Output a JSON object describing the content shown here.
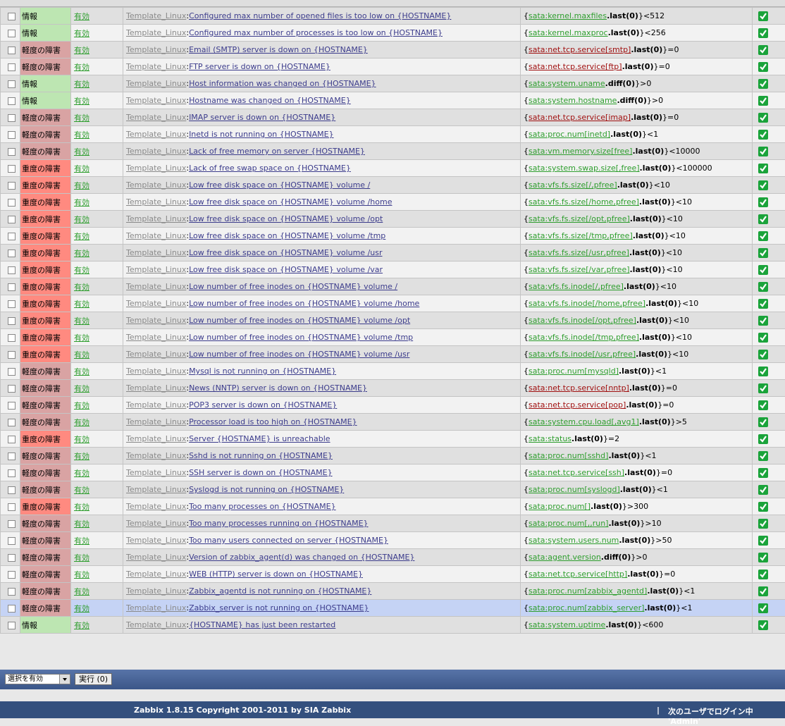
{
  "severity_colors": {
    "情報": "#bde6b2",
    "軽度の障害": "#d9a3a3",
    "重度の障害": "#ff8a80"
  },
  "key_colors": {
    "ok": "#2e9e2e",
    "svc": "#a01010"
  },
  "rows": [
    {
      "severity": "情報",
      "status": "有効",
      "host": "Template_Linux",
      "sep": ":",
      "name": "Configured max number of opened files is too low on {HOSTNAME}",
      "open": "{",
      "key": "sata:kernel.maxfiles",
      "key_kind": "ok",
      "func": ".last(0)",
      "tail": "}<512"
    },
    {
      "severity": "情報",
      "status": "有効",
      "host": "Template_Linux",
      "sep": ":",
      "name": "Configured max number of processes is too low on {HOSTNAME}",
      "open": "{",
      "key": "sata:kernel.maxproc",
      "key_kind": "ok",
      "func": ".last(0)",
      "tail": "}<256"
    },
    {
      "severity": "軽度の障害",
      "status": "有効",
      "host": "Template_Linux",
      "sep": ":",
      "name": "Email (SMTP) server is down on {HOSTNAME}",
      "open": "{",
      "key": "sata:net.tcp.service[smtp]",
      "key_kind": "svc",
      "func": ".last(0)",
      "tail": "}=0"
    },
    {
      "severity": "軽度の障害",
      "status": "有効",
      "host": "Template_Linux",
      "sep": ":",
      "name": "FTP server is down on {HOSTNAME}",
      "open": "{",
      "key": "sata:net.tcp.service[ftp]",
      "key_kind": "svc",
      "func": ".last(0)",
      "tail": "}=0"
    },
    {
      "severity": "情報",
      "status": "有効",
      "host": "Template_Linux",
      "sep": ":",
      "name": "Host information was changed on {HOSTNAME}",
      "open": "{",
      "key": "sata:system.uname",
      "key_kind": "ok",
      "func": ".diff(0)",
      "tail": "}>0"
    },
    {
      "severity": "情報",
      "status": "有効",
      "host": "Template_Linux",
      "sep": ":",
      "name": "Hostname was changed on {HOSTNAME}",
      "open": "{",
      "key": "sata:system.hostname",
      "key_kind": "ok",
      "func": ".diff(0)",
      "tail": "}>0"
    },
    {
      "severity": "軽度の障害",
      "status": "有効",
      "host": "Template_Linux",
      "sep": ":",
      "name": "IMAP server is down on {HOSTNAME}",
      "open": "{",
      "key": "sata:net.tcp.service[imap]",
      "key_kind": "svc",
      "func": ".last(0)",
      "tail": "}=0"
    },
    {
      "severity": "軽度の障害",
      "status": "有効",
      "host": "Template_Linux",
      "sep": ":",
      "name": "Inetd is not running on {HOSTNAME}",
      "open": "{",
      "key": "sata:proc.num[inetd]",
      "key_kind": "ok",
      "func": ".last(0)",
      "tail": "}<1"
    },
    {
      "severity": "軽度の障害",
      "status": "有効",
      "host": "Template_Linux",
      "sep": ":",
      "name": "Lack of free memory on server {HOSTNAME}",
      "open": "{",
      "key": "sata:vm.memory.size[free]",
      "key_kind": "ok",
      "func": ".last(0)",
      "tail": "}<10000"
    },
    {
      "severity": "重度の障害",
      "status": "有効",
      "host": "Template_Linux",
      "sep": ":",
      "name": "Lack of free swap space on {HOSTNAME}",
      "open": "{",
      "key": "sata:system.swap.size[,free]",
      "key_kind": "ok",
      "func": ".last(0)",
      "tail": "}<100000"
    },
    {
      "severity": "重度の障害",
      "status": "有効",
      "host": "Template_Linux",
      "sep": ":",
      "name": "Low free disk space on {HOSTNAME} volume /",
      "open": "{",
      "key": "sata:vfs.fs.size[/,pfree]",
      "key_kind": "ok",
      "func": ".last(0)",
      "tail": "}<10"
    },
    {
      "severity": "重度の障害",
      "status": "有効",
      "host": "Template_Linux",
      "sep": ":",
      "name": "Low free disk space on {HOSTNAME} volume /home",
      "open": "{",
      "key": "sata:vfs.fs.size[/home,pfree]",
      "key_kind": "ok",
      "func": ".last(0)",
      "tail": "}<10"
    },
    {
      "severity": "重度の障害",
      "status": "有効",
      "host": "Template_Linux",
      "sep": ":",
      "name": "Low free disk space on {HOSTNAME} volume /opt",
      "open": "{",
      "key": "sata:vfs.fs.size[/opt,pfree]",
      "key_kind": "ok",
      "func": ".last(0)",
      "tail": "}<10"
    },
    {
      "severity": "重度の障害",
      "status": "有効",
      "host": "Template_Linux",
      "sep": ":",
      "name": "Low free disk space on {HOSTNAME} volume /tmp",
      "open": "{",
      "key": "sata:vfs.fs.size[/tmp,pfree]",
      "key_kind": "ok",
      "func": ".last(0)",
      "tail": "}<10"
    },
    {
      "severity": "重度の障害",
      "status": "有効",
      "host": "Template_Linux",
      "sep": ":",
      "name": "Low free disk space on {HOSTNAME} volume /usr",
      "open": "{",
      "key": "sata:vfs.fs.size[/usr,pfree]",
      "key_kind": "ok",
      "func": ".last(0)",
      "tail": "}<10"
    },
    {
      "severity": "重度の障害",
      "status": "有効",
      "host": "Template_Linux",
      "sep": ":",
      "name": "Low free disk space on {HOSTNAME} volume /var",
      "open": "{",
      "key": "sata:vfs.fs.size[/var,pfree]",
      "key_kind": "ok",
      "func": ".last(0)",
      "tail": "}<10"
    },
    {
      "severity": "重度の障害",
      "status": "有効",
      "host": "Template_Linux",
      "sep": ":",
      "name": "Low number of free inodes on {HOSTNAME} volume /",
      "open": "{",
      "key": "sata:vfs.fs.inode[/,pfree]",
      "key_kind": "ok",
      "func": ".last(0)",
      "tail": "}<10"
    },
    {
      "severity": "重度の障害",
      "status": "有効",
      "host": "Template_Linux",
      "sep": ":",
      "name": "Low number of free inodes on {HOSTNAME} volume /home",
      "open": "{",
      "key": "sata:vfs.fs.inode[/home,pfree]",
      "key_kind": "ok",
      "func": ".last(0)",
      "tail": "}<10"
    },
    {
      "severity": "重度の障害",
      "status": "有効",
      "host": "Template_Linux",
      "sep": ":",
      "name": "Low number of free inodes on {HOSTNAME} volume /opt",
      "open": "{",
      "key": "sata:vfs.fs.inode[/opt,pfree]",
      "key_kind": "ok",
      "func": ".last(0)",
      "tail": "}<10"
    },
    {
      "severity": "重度の障害",
      "status": "有効",
      "host": "Template_Linux",
      "sep": ":",
      "name": "Low number of free inodes on {HOSTNAME} volume /tmp",
      "open": "{",
      "key": "sata:vfs.fs.inode[/tmp,pfree]",
      "key_kind": "ok",
      "func": ".last(0)",
      "tail": "}<10"
    },
    {
      "severity": "重度の障害",
      "status": "有効",
      "host": "Template_Linux",
      "sep": ":",
      "name": "Low number of free inodes on {HOSTNAME} volume /usr",
      "open": "{",
      "key": "sata:vfs.fs.inode[/usr,pfree]",
      "key_kind": "ok",
      "func": ".last(0)",
      "tail": "}<10"
    },
    {
      "severity": "軽度の障害",
      "status": "有効",
      "host": "Template_Linux",
      "sep": ":",
      "name": "Mysql is not running on {HOSTNAME}",
      "open": "{",
      "key": "sata:proc.num[mysqld]",
      "key_kind": "ok",
      "func": ".last(0)",
      "tail": "}<1"
    },
    {
      "severity": "軽度の障害",
      "status": "有効",
      "host": "Template_Linux",
      "sep": ":",
      "name": "News (NNTP) server is down on {HOSTNAME}",
      "open": "{",
      "key": "sata:net.tcp.service[nntp]",
      "key_kind": "svc",
      "func": ".last(0)",
      "tail": "}=0"
    },
    {
      "severity": "軽度の障害",
      "status": "有効",
      "host": "Template_Linux",
      "sep": ":",
      "name": "POP3 server is down on {HOSTNAME}",
      "open": "{",
      "key": "sata:net.tcp.service[pop]",
      "key_kind": "svc",
      "func": ".last(0)",
      "tail": "}=0"
    },
    {
      "severity": "軽度の障害",
      "status": "有効",
      "host": "Template_Linux",
      "sep": ":",
      "name": "Processor load is too high on {HOSTNAME}",
      "open": "{",
      "key": "sata:system.cpu.load[,avg1]",
      "key_kind": "ok",
      "func": ".last(0)",
      "tail": "}>5"
    },
    {
      "severity": "重度の障害",
      "status": "有効",
      "host": "Template_Linux",
      "sep": ":",
      "name": "Server {HOSTNAME} is unreachable",
      "open": "{",
      "key": "sata:status",
      "key_kind": "ok",
      "func": ".last(0)",
      "tail": "}=2"
    },
    {
      "severity": "軽度の障害",
      "status": "有効",
      "host": "Template_Linux",
      "sep": ":",
      "name": "Sshd is not running on {HOSTNAME}",
      "open": "{",
      "key": "sata:proc.num[sshd]",
      "key_kind": "ok",
      "func": ".last(0)",
      "tail": "}<1"
    },
    {
      "severity": "軽度の障害",
      "status": "有効",
      "host": "Template_Linux",
      "sep": ":",
      "name": "SSH server is down on {HOSTNAME}",
      "open": "{",
      "key": "sata:net.tcp.service[ssh]",
      "key_kind": "ok",
      "func": ".last(0)",
      "tail": "}=0"
    },
    {
      "severity": "軽度の障害",
      "status": "有効",
      "host": "Template_Linux",
      "sep": ":",
      "name": "Syslogd is not running on {HOSTNAME}",
      "open": "{",
      "key": "sata:proc.num[syslogd]",
      "key_kind": "ok",
      "func": ".last(0)",
      "tail": "}<1"
    },
    {
      "severity": "重度の障害",
      "status": "有効",
      "host": "Template_Linux",
      "sep": ":",
      "name": "Too many processes on {HOSTNAME}",
      "open": "{",
      "key": "sata:proc.num[]",
      "key_kind": "ok",
      "func": ".last(0)",
      "tail": "}>300"
    },
    {
      "severity": "軽度の障害",
      "status": "有効",
      "host": "Template_Linux",
      "sep": ":",
      "name": "Too many processes running on {HOSTNAME}",
      "open": "{",
      "key": "sata:proc.num[,,run]",
      "key_kind": "ok",
      "func": ".last(0)",
      "tail": "}>10"
    },
    {
      "severity": "軽度の障害",
      "status": "有効",
      "host": "Template_Linux",
      "sep": ":",
      "name": "Too many users connected on server {HOSTNAME}",
      "open": "{",
      "key": "sata:system.users.num",
      "key_kind": "ok",
      "func": ".last(0)",
      "tail": "}>50"
    },
    {
      "severity": "軽度の障害",
      "status": "有効",
      "host": "Template_Linux",
      "sep": ":",
      "name": "Version of zabbix_agent(d) was changed on {HOSTNAME}",
      "open": "{",
      "key": "sata:agent.version",
      "key_kind": "ok",
      "func": ".diff(0)",
      "tail": "}>0"
    },
    {
      "severity": "軽度の障害",
      "status": "有効",
      "host": "Template_Linux",
      "sep": ":",
      "name": "WEB (HTTP) server is down on {HOSTNAME}",
      "open": "{",
      "key": "sata:net.tcp.service[http]",
      "key_kind": "ok",
      "func": ".last(0)",
      "tail": "}=0"
    },
    {
      "severity": "軽度の障害",
      "status": "有効",
      "host": "Template_Linux",
      "sep": ":",
      "name": "Zabbix_agentd is not running on {HOSTNAME}",
      "open": "{",
      "key": "sata:proc.num[zabbix_agentd]",
      "key_kind": "ok",
      "func": ".last(0)",
      "tail": "}<1"
    },
    {
      "severity": "軽度の障害",
      "status": "有効",
      "host": "Template_Linux",
      "sep": ":",
      "name": "Zabbix_server is not running on {HOSTNAME}",
      "open": "{",
      "key": "sata:proc.num[zabbix_server]",
      "key_kind": "ok",
      "func": ".last(0)",
      "tail": "}<1",
      "selected": true
    },
    {
      "severity": "情報",
      "status": "有効",
      "host": "Template_Linux",
      "sep": ":",
      "name": "{HOSTNAME} has just been restarted",
      "open": "{",
      "key": "sata:system.uptime",
      "key_kind": "ok",
      "func": ".last(0)",
      "tail": "}<600"
    }
  ],
  "actions": {
    "select": "選択を有効",
    "button": "実行 (0)"
  },
  "footer": {
    "copyright": "Zabbix 1.8.15 Copyright 2001-2011 by SIA Zabbix",
    "separator": "|",
    "login": "次のユーザでログイン中 'Admin'"
  }
}
